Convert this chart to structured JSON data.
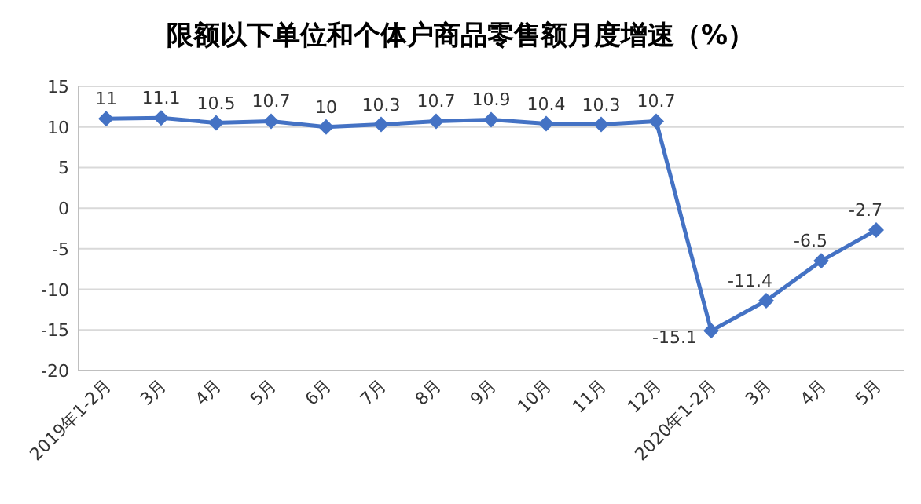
{
  "chart_data": {
    "type": "line",
    "title": "限额以下单位和个体户商品零售额月度增速（%）",
    "categories": [
      "2019年1-2月",
      "3月",
      "4月",
      "5月",
      "6月",
      "7月",
      "8月",
      "9月",
      "10月",
      "11月",
      "12月",
      "2020年1-2月",
      "3月",
      "4月",
      "5月"
    ],
    "values": [
      11,
      11.1,
      10.5,
      10.7,
      10,
      10.3,
      10.7,
      10.9,
      10.4,
      10.3,
      10.7,
      -15.1,
      -11.4,
      -6.5,
      -2.7
    ],
    "color": "#4472c4",
    "ylim": [
      -20,
      15
    ],
    "yticks": [
      -20,
      -15,
      -10,
      -5,
      0,
      5,
      10,
      15
    ],
    "grid": "y",
    "marker": "diamond",
    "line_style": "solid",
    "data_labels": true
  }
}
